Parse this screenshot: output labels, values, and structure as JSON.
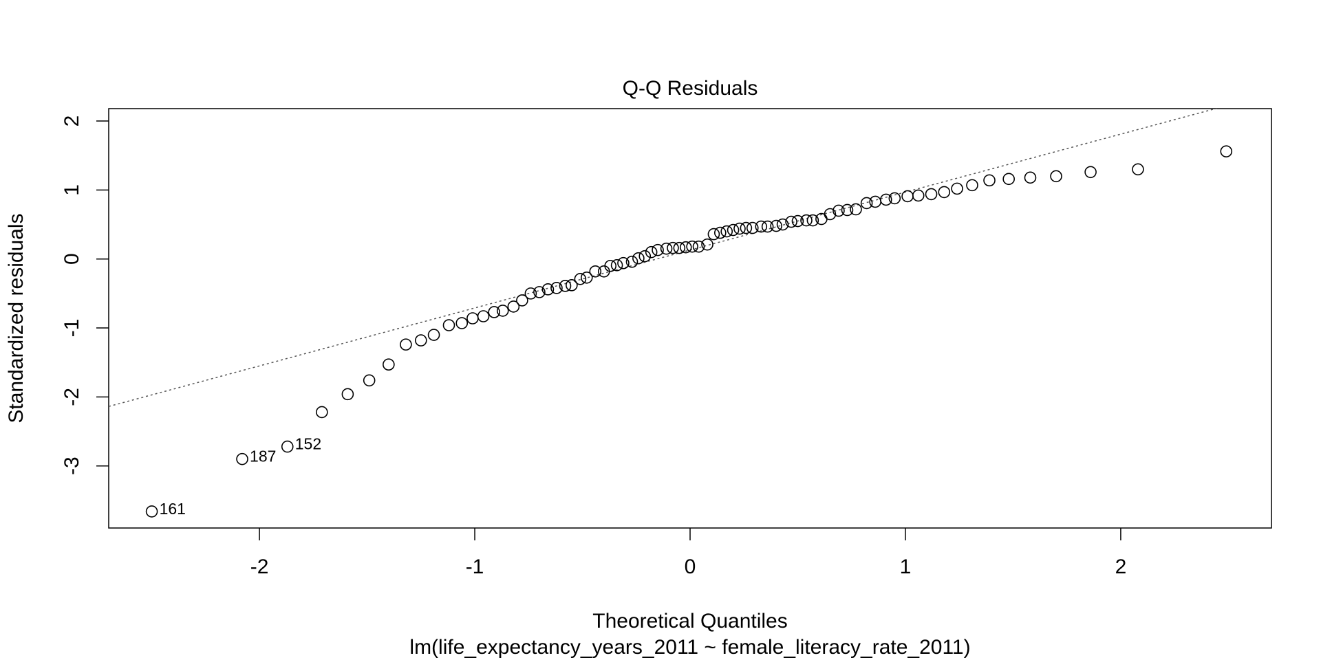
{
  "chart_data": {
    "type": "qq",
    "title": "Q-Q Residuals",
    "x_label": "Theoretical Quantiles",
    "y_label": "Standardized residuals",
    "subtitle": "lm(life_expectancy_years_2011 ~ female_literacy_rate_2011)",
    "xlim": [
      -2.7,
      2.7
    ],
    "ylim": [
      -3.9,
      2.18
    ],
    "xticks": [
      -2,
      -1,
      0,
      1,
      2
    ],
    "yticks": [
      -3,
      -2,
      -1,
      0,
      1,
      2
    ],
    "color": "#000000",
    "line_color": "#555555",
    "qqline": {
      "intercept": 0.13,
      "slope": 0.84
    },
    "x": [
      -2.5,
      -2.08,
      -1.87,
      -1.71,
      -1.59,
      -1.49,
      -1.4,
      -1.32,
      -1.25,
      -1.19,
      -1.12,
      -1.06,
      -1.01,
      -0.96,
      -0.91,
      -0.87,
      -0.82,
      -0.78,
      -0.74,
      -0.7,
      -0.66,
      -0.62,
      -0.58,
      -0.55,
      -0.51,
      -0.48,
      -0.44,
      -0.4,
      -0.37,
      -0.34,
      -0.31,
      -0.27,
      -0.24,
      -0.21,
      -0.18,
      -0.15,
      -0.11,
      -0.08,
      -0.05,
      -0.02,
      0.01,
      0.04,
      0.08,
      0.11,
      0.14,
      0.17,
      0.2,
      0.23,
      0.26,
      0.29,
      0.33,
      0.36,
      0.4,
      0.43,
      0.47,
      0.5,
      0.54,
      0.57,
      0.61,
      0.65,
      0.69,
      0.73,
      0.77,
      0.82,
      0.86,
      0.91,
      0.95,
      1.01,
      1.06,
      1.12,
      1.18,
      1.24,
      1.31,
      1.39,
      1.48,
      1.58,
      1.7,
      1.86,
      2.08,
      2.49
    ],
    "values": [
      -3.66,
      -2.9,
      -2.72,
      -2.22,
      -1.96,
      -1.76,
      -1.53,
      -1.24,
      -1.18,
      -1.1,
      -0.96,
      -0.93,
      -0.86,
      -0.83,
      -0.77,
      -0.75,
      -0.69,
      -0.6,
      -0.5,
      -0.48,
      -0.44,
      -0.42,
      -0.39,
      -0.38,
      -0.29,
      -0.27,
      -0.18,
      -0.18,
      -0.1,
      -0.09,
      -0.06,
      -0.04,
      0.01,
      0.04,
      0.1,
      0.13,
      0.15,
      0.16,
      0.16,
      0.17,
      0.18,
      0.18,
      0.21,
      0.36,
      0.38,
      0.4,
      0.42,
      0.44,
      0.45,
      0.45,
      0.47,
      0.47,
      0.48,
      0.5,
      0.54,
      0.55,
      0.56,
      0.56,
      0.58,
      0.65,
      0.7,
      0.71,
      0.72,
      0.81,
      0.83,
      0.86,
      0.88,
      0.91,
      0.92,
      0.94,
      0.97,
      1.02,
      1.07,
      1.14,
      1.16,
      1.18,
      1.2,
      1.26,
      1.3,
      1.56
    ],
    "point_labels": [
      "161",
      "187",
      "152",
      null,
      null,
      null,
      null,
      null,
      null,
      null,
      null,
      null,
      null,
      null,
      null,
      null,
      null,
      null,
      null,
      null,
      null,
      null,
      null,
      null,
      null,
      null,
      null,
      null,
      null,
      null,
      null,
      null,
      null,
      null,
      null,
      null,
      null,
      null,
      null,
      null,
      null,
      null,
      null,
      null,
      null,
      null,
      null,
      null,
      null,
      null,
      null,
      null,
      null,
      null,
      null,
      null,
      null,
      null,
      null,
      null,
      null,
      null,
      null,
      null,
      null,
      null,
      null,
      null,
      null,
      null,
      null,
      null,
      null,
      null,
      null,
      null,
      null,
      null,
      null,
      null
    ]
  }
}
